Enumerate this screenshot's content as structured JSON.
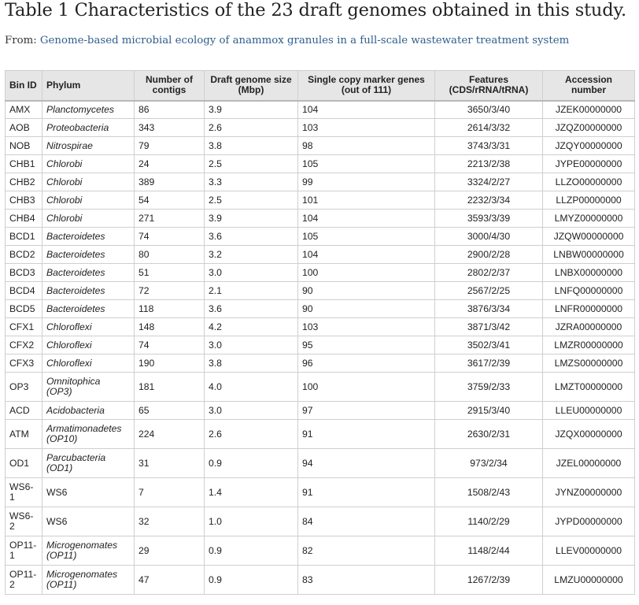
{
  "title": "Table 1 Characteristics of the 23 draft genomes obtained in this study.",
  "source": {
    "prefix": "From: ",
    "link_text": "Genome-based microbial ecology of anammox granules in a full-scale wastewater treatment system"
  },
  "table": {
    "headers": [
      "Bin ID",
      "Phylum",
      "Number of contigs",
      "Draft genome size (Mbp)",
      "Single copy marker genes (out of 111)",
      "Features (CDS/rRNA/tRNA)",
      "Accession number"
    ],
    "rows": [
      {
        "bin": "AMX",
        "phylum": "Planctomycetes",
        "contigs": "86",
        "size": "3.9",
        "markers": "104",
        "features": "3650/3/40",
        "accession": "JZEK00000000"
      },
      {
        "bin": "AOB",
        "phylum": "Proteobacteria",
        "contigs": "343",
        "size": "2.6",
        "markers": "103",
        "features": "2614/3/32",
        "accession": "JZQZ00000000"
      },
      {
        "bin": "NOB",
        "phylum": "Nitrospirae",
        "contigs": "79",
        "size": "3.8",
        "markers": "98",
        "features": "3743/3/31",
        "accession": "JZQY00000000"
      },
      {
        "bin": "CHB1",
        "phylum": "Chlorobi",
        "contigs": "24",
        "size": "2.5",
        "markers": "105",
        "features": "2213/2/38",
        "accession": "JYPE00000000"
      },
      {
        "bin": "CHB2",
        "phylum": "Chlorobi",
        "contigs": "389",
        "size": "3.3",
        "markers": "99",
        "features": "3324/2/27",
        "accession": "LLZO00000000"
      },
      {
        "bin": "CHB3",
        "phylum": "Chlorobi",
        "contigs": "54",
        "size": "2.5",
        "markers": "101",
        "features": "2232/3/34",
        "accession": "LLZP00000000"
      },
      {
        "bin": "CHB4",
        "phylum": "Chlorobi",
        "contigs": "271",
        "size": "3.9",
        "markers": "104",
        "features": "3593/3/39",
        "accession": "LMYZ00000000"
      },
      {
        "bin": "BCD1",
        "phylum": "Bacteroidetes",
        "contigs": "74",
        "size": "3.6",
        "markers": "105",
        "features": "3000/4/30",
        "accession": "JZQW00000000"
      },
      {
        "bin": "BCD2",
        "phylum": "Bacteroidetes",
        "contigs": "80",
        "size": "3.2",
        "markers": "104",
        "features": "2900/2/28",
        "accession": "LNBW00000000"
      },
      {
        "bin": "BCD3",
        "phylum": "Bacteroidetes",
        "contigs": "51",
        "size": "3.0",
        "markers": "100",
        "features": "2802/2/37",
        "accession": "LNBX00000000"
      },
      {
        "bin": "BCD4",
        "phylum": "Bacteroidetes",
        "contigs": "72",
        "size": "2.1",
        "markers": "90",
        "features": "2567/2/25",
        "accession": "LNFQ00000000"
      },
      {
        "bin": "BCD5",
        "phylum": "Bacteroidetes",
        "contigs": "118",
        "size": "3.6",
        "markers": "90",
        "features": "3876/3/34",
        "accession": "LNFR00000000"
      },
      {
        "bin": "CFX1",
        "phylum": "Chloroflexi",
        "contigs": "148",
        "size": "4.2",
        "markers": "103",
        "features": "3871/3/42",
        "accession": "JZRA00000000"
      },
      {
        "bin": "CFX2",
        "phylum": "Chloroflexi",
        "contigs": "74",
        "size": "3.0",
        "markers": "95",
        "features": "3502/3/41",
        "accession": "LMZR00000000"
      },
      {
        "bin": "CFX3",
        "phylum": "Chloroflexi",
        "contigs": "190",
        "size": "3.8",
        "markers": "96",
        "features": "3617/2/39",
        "accession": "LMZS00000000"
      },
      {
        "bin": "OP3",
        "phylum": "Omnitophica",
        "phylum_sub": "(OP3)",
        "contigs": "181",
        "size": "4.0",
        "markers": "100",
        "features": "3759/2/33",
        "accession": "LMZT00000000"
      },
      {
        "bin": "ACD",
        "phylum": "Acidobacteria",
        "contigs": "65",
        "size": "3.0",
        "markers": "97",
        "features": "2915/3/40",
        "accession": "LLEU00000000"
      },
      {
        "bin": "ATM",
        "phylum": "Armatimonadetes",
        "phylum_sub": "(OP10)",
        "contigs": "224",
        "size": "2.6",
        "markers": "91",
        "features": "2630/2/31",
        "accession": "JZQX00000000"
      },
      {
        "bin": "OD1",
        "phylum": "Parcubacteria",
        "phylum_sub": "(OD1)",
        "contigs": "31",
        "size": "0.9",
        "markers": "94",
        "features": "973/2/34",
        "accession": "JZEL00000000"
      },
      {
        "bin": "WS6-1",
        "phylum": "WS6",
        "plain": true,
        "contigs": "7",
        "size": "1.4",
        "markers": "91",
        "features": "1508/2/43",
        "accession": "JYNZ00000000"
      },
      {
        "bin": "WS6-2",
        "phylum": "WS6",
        "plain": true,
        "contigs": "32",
        "size": "1.0",
        "markers": "84",
        "features": "1140/2/29",
        "accession": "JYPD00000000"
      },
      {
        "bin": "OP11-1",
        "phylum": "Microgenomates",
        "phylum_sub": "(OP11)",
        "contigs": "29",
        "size": "0.9",
        "markers": "82",
        "features": "1148/2/44",
        "accession": "LLEV00000000"
      },
      {
        "bin": "OP11-2",
        "phylum": "Microgenomates",
        "phylum_sub": "(OP11)",
        "contigs": "47",
        "size": "0.9",
        "markers": "83",
        "features": "1267/2/39",
        "accession": "LMZU00000000"
      }
    ]
  }
}
